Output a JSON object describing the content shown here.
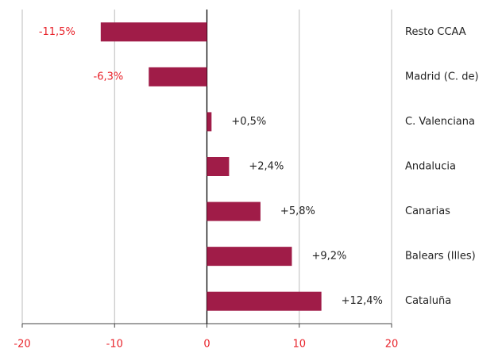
{
  "chart_data": {
    "type": "hbar",
    "categories": [
      "Resto  CCAA",
      "Madrid (C. de)",
      "C. Valenciana",
      "Andalucia",
      "Canarias",
      "Balears (Illes)",
      "Cataluña"
    ],
    "values": [
      -11.5,
      -6.3,
      0.5,
      2.4,
      5.8,
      9.2,
      12.4
    ],
    "value_labels": [
      "-11,5%",
      "-6,3%",
      "+0,5%",
      "+2,4%",
      "+5,8%",
      "+9,2%",
      "+12,4%"
    ],
    "color": "#a01c48",
    "xlim": [
      -20,
      20
    ],
    "xticks": [
      -20,
      -10,
      0,
      10,
      20
    ],
    "grid": true
  }
}
